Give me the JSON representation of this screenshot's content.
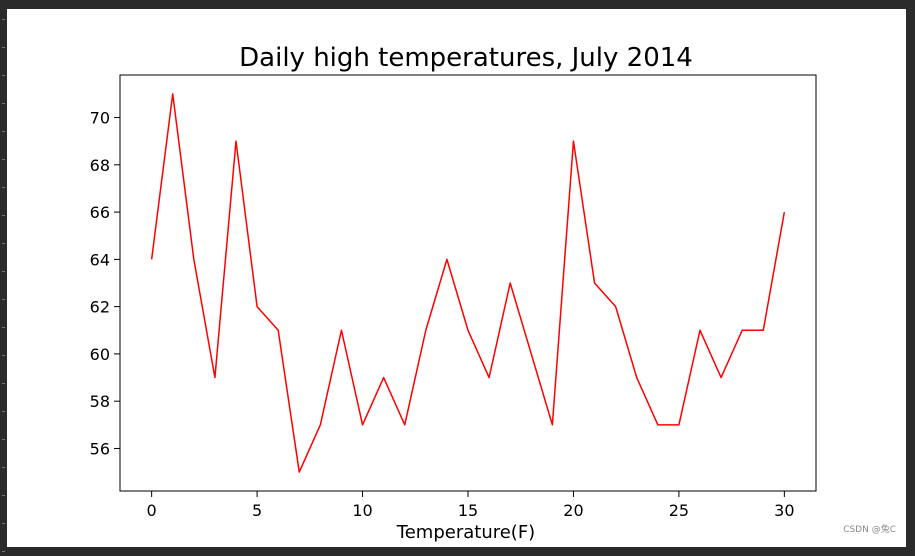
{
  "chart_data": {
    "type": "line",
    "title": "Daily high temperatures, July 2014",
    "xlabel": "Temperature(F)",
    "ylabel": "",
    "x": [
      0,
      1,
      2,
      3,
      4,
      5,
      6,
      7,
      8,
      9,
      10,
      11,
      12,
      13,
      14,
      15,
      16,
      17,
      18,
      19,
      20,
      21,
      22,
      23,
      24,
      25,
      26,
      27,
      28,
      29,
      30
    ],
    "series": [
      {
        "values": [
          64,
          71,
          64,
          59,
          69,
          62,
          61,
          55,
          57,
          61,
          57,
          59,
          57,
          61,
          64,
          61,
          59,
          63,
          60,
          57,
          69,
          63,
          62,
          59,
          57,
          57,
          61,
          59,
          61,
          61,
          66
        ],
        "color": "#ff0000"
      }
    ],
    "xlim": [
      -1.5,
      31.5
    ],
    "ylim": [
      54.2,
      71.8
    ],
    "xticks": [
      0,
      5,
      10,
      15,
      20,
      25,
      30
    ],
    "yticks": [
      56,
      58,
      60,
      62,
      64,
      66,
      68,
      70
    ],
    "grid": false,
    "legend": "none"
  },
  "watermark": "CSDN @兔C"
}
